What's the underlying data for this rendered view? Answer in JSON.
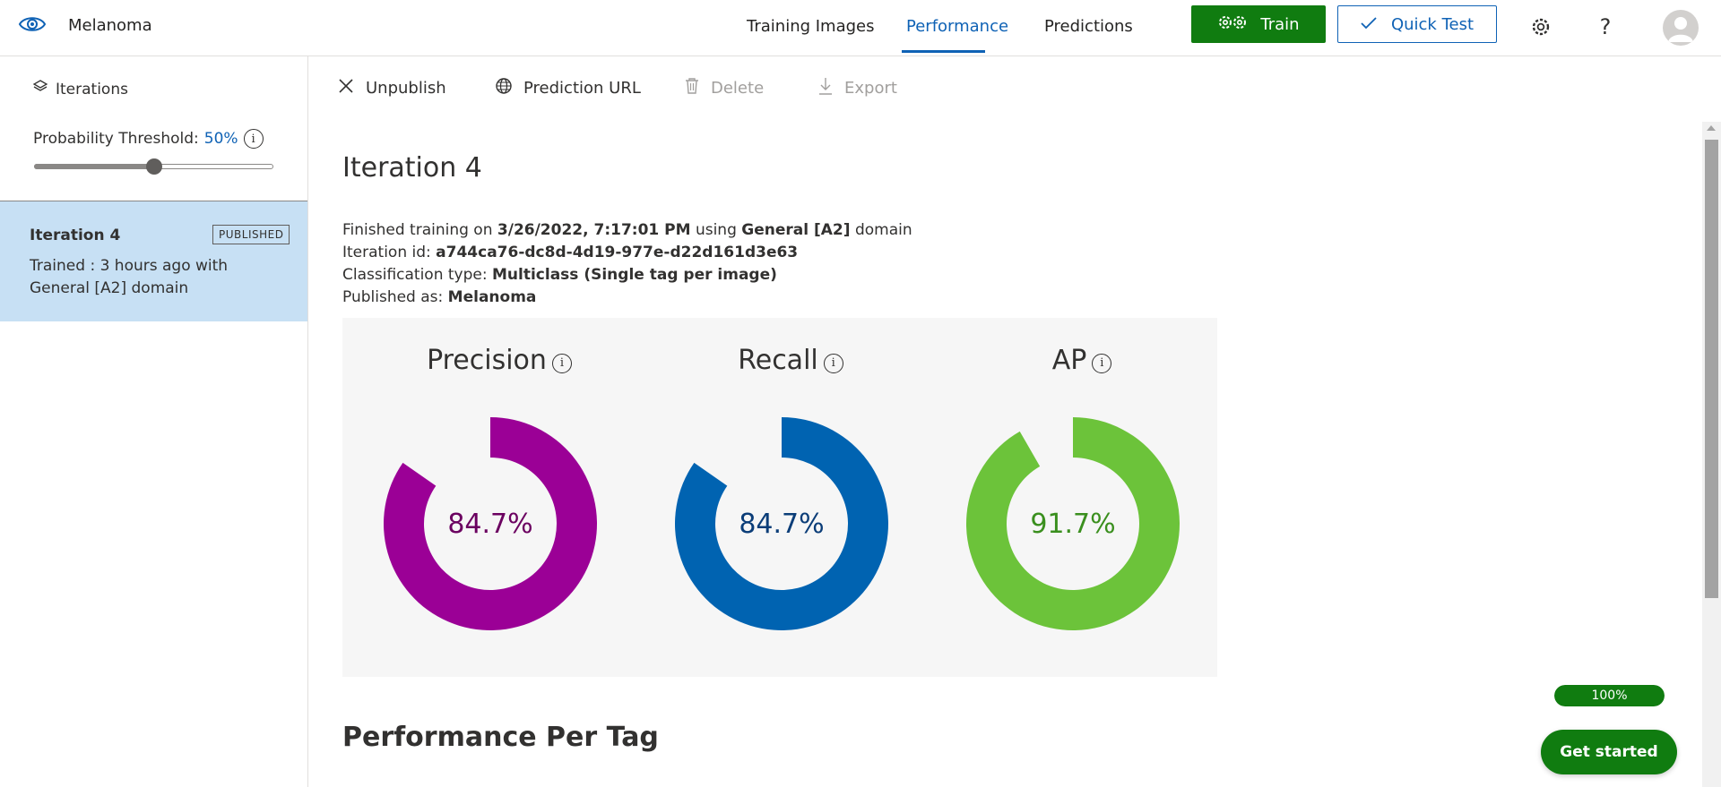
{
  "header": {
    "app_title": "Melanoma",
    "tabs": [
      {
        "label": "Training Images",
        "active": false
      },
      {
        "label": "Performance",
        "active": true
      },
      {
        "label": "Predictions",
        "active": false
      }
    ],
    "train_label": "Train",
    "quick_test_label": "Quick Test",
    "icons": [
      "eye-icon",
      "gears-icon",
      "checkmark-icon",
      "settings-gear-icon",
      "help-icon",
      "avatar-icon"
    ],
    "accent": "#0f62b5",
    "brand_green": "#107c10"
  },
  "sidebar": {
    "iterations_label": "Iterations",
    "threshold_label": "Probability Threshold:",
    "threshold_value": "50%",
    "threshold_fraction": 0.5,
    "iteration_card": {
      "title": "Iteration 4",
      "badge": "PUBLISHED",
      "description": "Trained : 3 hours ago with General [A2] domain"
    }
  },
  "commands": {
    "unpublish": "Unpublish",
    "prediction_url": "Prediction URL",
    "delete": "Delete",
    "export": "Export"
  },
  "main": {
    "title": "Iteration 4",
    "details": {
      "finished_prefix": "Finished training on",
      "finished_date": "3/26/2022, 7:17:01 PM",
      "using": "using",
      "domain_name": "General [A2]",
      "domain_suffix": "domain",
      "iteration_id_label": "Iteration id:",
      "iteration_id": "a744ca76-dc8d-4d19-977e-d22d161d3e63",
      "classification_label": "Classification type:",
      "classification": "Multiclass (Single tag per image)",
      "published_label": "Published as:",
      "published_name": "Melanoma"
    },
    "metrics": [
      {
        "label": "Precision",
        "value": "84.7%",
        "fraction": 0.847,
        "color": "#9b0096",
        "text_color": "#6b0060"
      },
      {
        "label": "Recall",
        "value": "84.7%",
        "fraction": 0.847,
        "color": "#0063b1",
        "text_color": "#0b3d78"
      },
      {
        "label": "AP",
        "value": "91.7%",
        "fraction": 0.917,
        "color": "#6cc33a",
        "text_color": "#3a8f1e"
      }
    ],
    "performance_per_tag": "Performance Per Tag"
  },
  "floating": {
    "progress_value": "100%",
    "progress_fraction": 1.0,
    "get_started": "Get started"
  }
}
